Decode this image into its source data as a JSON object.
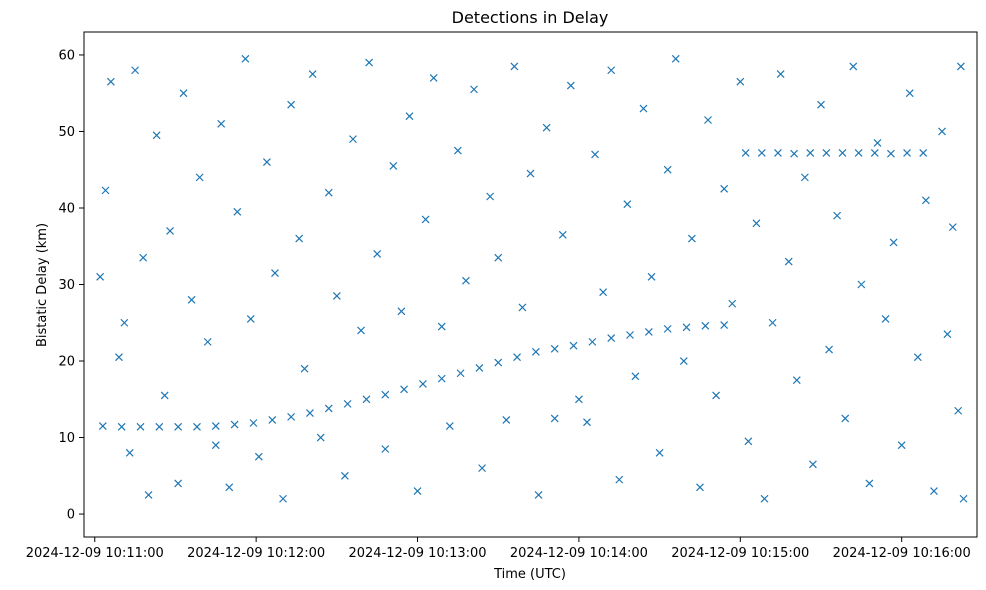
{
  "chart_data": {
    "type": "scatter",
    "title": "Detections in Delay",
    "xlabel": "Time (UTC)",
    "ylabel": "Bistatic Delay (km)",
    "marker": "x",
    "color": "#1f77b4",
    "x_tick_labels": [
      "2024-12-09 10:11:00",
      "2024-12-09 10:12:00",
      "2024-12-09 10:13:00",
      "2024-12-09 10:14:00",
      "2024-12-09 10:15:00",
      "2024-12-09 10:16:00"
    ],
    "y_ticks": [
      0,
      10,
      20,
      30,
      40,
      50,
      60
    ],
    "xlim": [
      "2024-12-09 10:10:56",
      "2024-12-09 10:16:28"
    ],
    "ylim": [
      -3,
      63
    ],
    "series": [
      {
        "description": "target track",
        "points": [
          [
            "10:11:03",
            11.5
          ],
          [
            "10:11:10",
            11.4
          ],
          [
            "10:11:17",
            11.4
          ],
          [
            "10:11:24",
            11.4
          ],
          [
            "10:11:31",
            11.4
          ],
          [
            "10:11:38",
            11.4
          ],
          [
            "10:11:45",
            11.5
          ],
          [
            "10:11:52",
            11.7
          ],
          [
            "10:11:59",
            11.9
          ],
          [
            "10:12:06",
            12.3
          ],
          [
            "10:12:13",
            12.7
          ],
          [
            "10:12:20",
            13.2
          ],
          [
            "10:12:27",
            13.8
          ],
          [
            "10:12:34",
            14.4
          ],
          [
            "10:12:41",
            15.0
          ],
          [
            "10:12:48",
            15.6
          ],
          [
            "10:12:55",
            16.3
          ],
          [
            "10:13:02",
            17.0
          ],
          [
            "10:13:09",
            17.7
          ],
          [
            "10:13:16",
            18.4
          ],
          [
            "10:13:23",
            19.1
          ],
          [
            "10:13:30",
            19.8
          ],
          [
            "10:13:37",
            20.5
          ],
          [
            "10:13:44",
            21.2
          ],
          [
            "10:13:51",
            21.6
          ],
          [
            "10:13:58",
            22.0
          ],
          [
            "10:14:05",
            22.5
          ],
          [
            "10:14:12",
            23.0
          ],
          [
            "10:14:19",
            23.4
          ],
          [
            "10:14:26",
            23.8
          ],
          [
            "10:14:33",
            24.2
          ],
          [
            "10:14:40",
            24.4
          ],
          [
            "10:14:47",
            24.6
          ],
          [
            "10:14:54",
            24.7
          ]
        ]
      },
      {
        "description": "second track",
        "points": [
          [
            "10:15:02",
            47.2
          ],
          [
            "10:15:08",
            47.2
          ],
          [
            "10:15:14",
            47.2
          ],
          [
            "10:15:20",
            47.1
          ],
          [
            "10:15:26",
            47.2
          ],
          [
            "10:15:32",
            47.2
          ],
          [
            "10:15:38",
            47.2
          ],
          [
            "10:15:44",
            47.2
          ],
          [
            "10:15:50",
            47.2
          ],
          [
            "10:15:56",
            47.1
          ],
          [
            "10:16:02",
            47.2
          ],
          [
            "10:16:08",
            47.2
          ]
        ]
      },
      {
        "description": "clutter",
        "points": [
          [
            "10:11:02",
            31.0
          ],
          [
            "10:11:04",
            42.3
          ],
          [
            "10:11:06",
            56.5
          ],
          [
            "10:11:09",
            20.5
          ],
          [
            "10:11:11",
            25.0
          ],
          [
            "10:11:13",
            8.0
          ],
          [
            "10:11:15",
            58.0
          ],
          [
            "10:11:18",
            33.5
          ],
          [
            "10:11:20",
            2.5
          ],
          [
            "10:11:23",
            49.5
          ],
          [
            "10:11:26",
            15.5
          ],
          [
            "10:11:28",
            37.0
          ],
          [
            "10:11:31",
            4.0
          ],
          [
            "10:11:33",
            55.0
          ],
          [
            "10:11:36",
            28.0
          ],
          [
            "10:11:39",
            44.0
          ],
          [
            "10:11:42",
            22.5
          ],
          [
            "10:11:45",
            9.0
          ],
          [
            "10:11:47",
            51.0
          ],
          [
            "10:11:50",
            3.5
          ],
          [
            "10:11:53",
            39.5
          ],
          [
            "10:11:56",
            59.5
          ],
          [
            "10:11:58",
            25.5
          ],
          [
            "10:12:01",
            7.5
          ],
          [
            "10:12:04",
            46.0
          ],
          [
            "10:12:07",
            31.5
          ],
          [
            "10:12:10",
            2.0
          ],
          [
            "10:12:13",
            53.5
          ],
          [
            "10:12:16",
            36.0
          ],
          [
            "10:12:18",
            19.0
          ],
          [
            "10:12:21",
            57.5
          ],
          [
            "10:12:24",
            10.0
          ],
          [
            "10:12:27",
            42.0
          ],
          [
            "10:12:30",
            28.5
          ],
          [
            "10:12:33",
            5.0
          ],
          [
            "10:12:36",
            49.0
          ],
          [
            "10:12:39",
            24.0
          ],
          [
            "10:12:42",
            59.0
          ],
          [
            "10:12:45",
            34.0
          ],
          [
            "10:12:48",
            8.5
          ],
          [
            "10:12:51",
            45.5
          ],
          [
            "10:12:54",
            26.5
          ],
          [
            "10:12:57",
            52.0
          ],
          [
            "10:13:00",
            3.0
          ],
          [
            "10:13:03",
            38.5
          ],
          [
            "10:13:06",
            57.0
          ],
          [
            "10:13:09",
            24.5
          ],
          [
            "10:13:12",
            11.5
          ],
          [
            "10:13:15",
            47.5
          ],
          [
            "10:13:18",
            30.5
          ],
          [
            "10:13:21",
            55.5
          ],
          [
            "10:13:24",
            6.0
          ],
          [
            "10:13:27",
            41.5
          ],
          [
            "10:13:30",
            33.5
          ],
          [
            "10:13:33",
            12.3
          ],
          [
            "10:13:36",
            58.5
          ],
          [
            "10:13:39",
            27.0
          ],
          [
            "10:13:42",
            44.5
          ],
          [
            "10:13:45",
            2.5
          ],
          [
            "10:13:48",
            50.5
          ],
          [
            "10:13:51",
            12.5
          ],
          [
            "10:13:54",
            36.5
          ],
          [
            "10:13:57",
            56.0
          ],
          [
            "10:14:00",
            15.0
          ],
          [
            "10:14:03",
            12.0
          ],
          [
            "10:14:06",
            47.0
          ],
          [
            "10:14:09",
            29.0
          ],
          [
            "10:14:12",
            58.0
          ],
          [
            "10:14:15",
            4.5
          ],
          [
            "10:14:18",
            40.5
          ],
          [
            "10:14:21",
            18.0
          ],
          [
            "10:14:24",
            53.0
          ],
          [
            "10:14:27",
            31.0
          ],
          [
            "10:14:30",
            8.0
          ],
          [
            "10:14:33",
            45.0
          ],
          [
            "10:14:36",
            59.5
          ],
          [
            "10:14:39",
            20.0
          ],
          [
            "10:14:42",
            36.0
          ],
          [
            "10:14:45",
            3.5
          ],
          [
            "10:14:48",
            51.5
          ],
          [
            "10:14:51",
            15.5
          ],
          [
            "10:14:54",
            42.5
          ],
          [
            "10:14:57",
            27.5
          ],
          [
            "10:15:00",
            56.5
          ],
          [
            "10:15:03",
            9.5
          ],
          [
            "10:15:06",
            38.0
          ],
          [
            "10:15:09",
            2.0
          ],
          [
            "10:15:12",
            25.0
          ],
          [
            "10:15:15",
            57.5
          ],
          [
            "10:15:18",
            33.0
          ],
          [
            "10:15:21",
            17.5
          ],
          [
            "10:15:24",
            44.0
          ],
          [
            "10:15:27",
            6.5
          ],
          [
            "10:15:30",
            53.5
          ],
          [
            "10:15:33",
            21.5
          ],
          [
            "10:15:36",
            39.0
          ],
          [
            "10:15:39",
            12.5
          ],
          [
            "10:15:42",
            58.5
          ],
          [
            "10:15:45",
            30.0
          ],
          [
            "10:15:48",
            4.0
          ],
          [
            "10:15:51",
            48.5
          ],
          [
            "10:15:54",
            25.5
          ],
          [
            "10:15:57",
            35.5
          ],
          [
            "10:16:00",
            9.0
          ],
          [
            "10:16:03",
            55.0
          ],
          [
            "10:16:06",
            20.5
          ],
          [
            "10:16:09",
            41.0
          ],
          [
            "10:16:12",
            3.0
          ],
          [
            "10:16:15",
            50.0
          ],
          [
            "10:16:17",
            23.5
          ],
          [
            "10:16:19",
            37.5
          ],
          [
            "10:16:21",
            13.5
          ],
          [
            "10:16:22",
            58.5
          ],
          [
            "10:16:23",
            2.0
          ]
        ]
      }
    ],
    "grid": false,
    "legend": "none"
  }
}
